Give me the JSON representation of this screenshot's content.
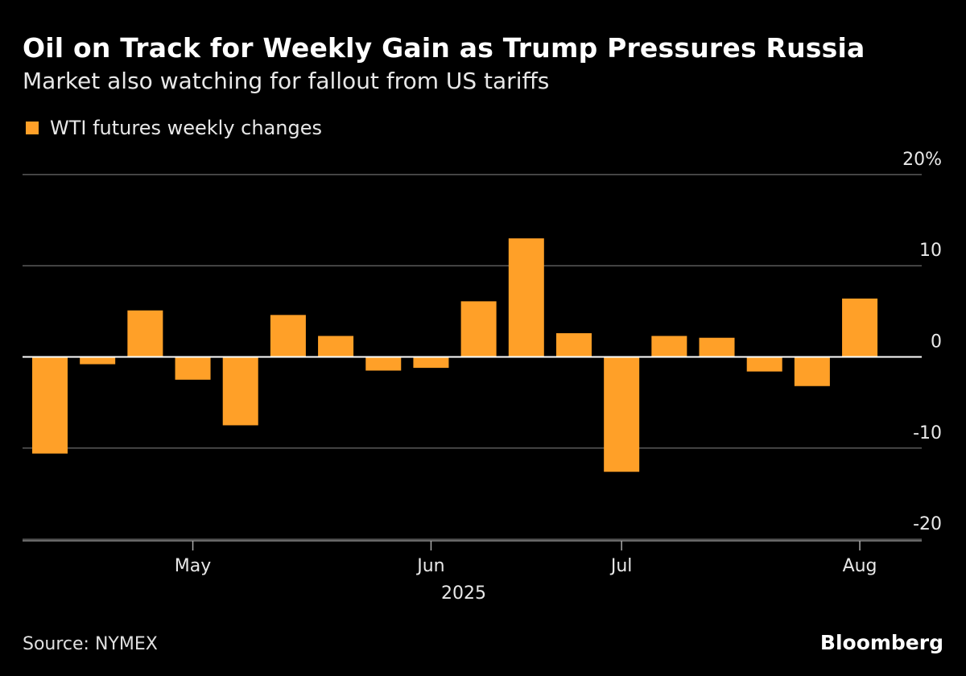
{
  "title": "Oil on Track for Weekly Gain as Trump Pressures Russia",
  "subtitle": "Market also watching for fallout from US tariffs",
  "source": "Source: NYMEX",
  "brand": "Bloomberg",
  "colors": {
    "bar": "#ffa028",
    "background": "#000000",
    "grid": "#5a5a5a",
    "zero_line": "#ffffff"
  },
  "chart_data": {
    "type": "bar",
    "title": "Oil on Track for Weekly Gain as Trump Pressures Russia",
    "subtitle": "Market also watching for fallout from US tariffs",
    "series": [
      {
        "name": "WTI futures weekly changes",
        "x": [
          "2025-04-04",
          "2025-04-11",
          "2025-04-18",
          "2025-04-25",
          "2025-05-02",
          "2025-05-09",
          "2025-05-16",
          "2025-05-23",
          "2025-05-30",
          "2025-06-06",
          "2025-06-13",
          "2025-06-20",
          "2025-06-27",
          "2025-07-04",
          "2025-07-11",
          "2025-07-18",
          "2025-07-25",
          "2025-08-01"
        ],
        "values": [
          -10.6,
          -0.8,
          5.1,
          -2.5,
          -7.5,
          4.6,
          2.3,
          -1.5,
          -1.2,
          6.1,
          13.0,
          2.6,
          -12.6,
          2.3,
          2.1,
          -1.6,
          -3.2,
          6.4
        ]
      }
    ],
    "ylim": [
      -20,
      20
    ],
    "yticks": [
      20,
      10,
      0,
      -10,
      -20
    ],
    "ytick_labels": [
      "20%",
      "10",
      "0",
      "-10",
      "-20"
    ],
    "xticks": [
      {
        "label": "May",
        "at": "2025-04-25"
      },
      {
        "label": "Jun",
        "at": "2025-05-30"
      },
      {
        "label": "Jul",
        "at": "2025-06-27"
      },
      {
        "label": "Aug",
        "at": "2025-08-01"
      }
    ],
    "xlabel": "2025",
    "ylabel": "",
    "grid": true,
    "legend": "top-left",
    "y_axis_side": "right"
  }
}
